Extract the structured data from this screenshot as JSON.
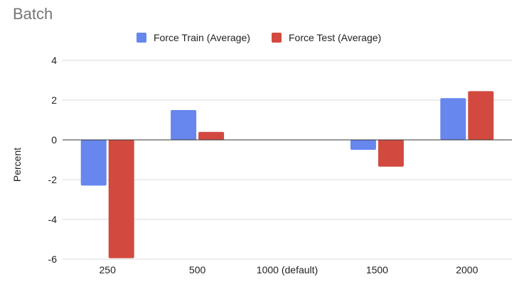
{
  "chart_data": {
    "type": "bar",
    "title": "Batch",
    "xlabel": "",
    "ylabel": "Percent",
    "categories": [
      "250",
      "500",
      "1000 (default)",
      "1500",
      "2000"
    ],
    "series": [
      {
        "name": "Force Train (Average)",
        "color": "#6786ee",
        "values": [
          -2.3,
          1.5,
          0,
          -0.5,
          2.1
        ]
      },
      {
        "name": "Force Test (Average)",
        "color": "#d24a3f",
        "values": [
          -5.95,
          0.4,
          0,
          -1.35,
          2.45
        ]
      }
    ],
    "ylim": [
      -6,
      4
    ],
    "yticks": [
      "4",
      "2",
      "0",
      "-2",
      "-4",
      "-6"
    ],
    "grid": true,
    "legend_position": "top-center"
  }
}
